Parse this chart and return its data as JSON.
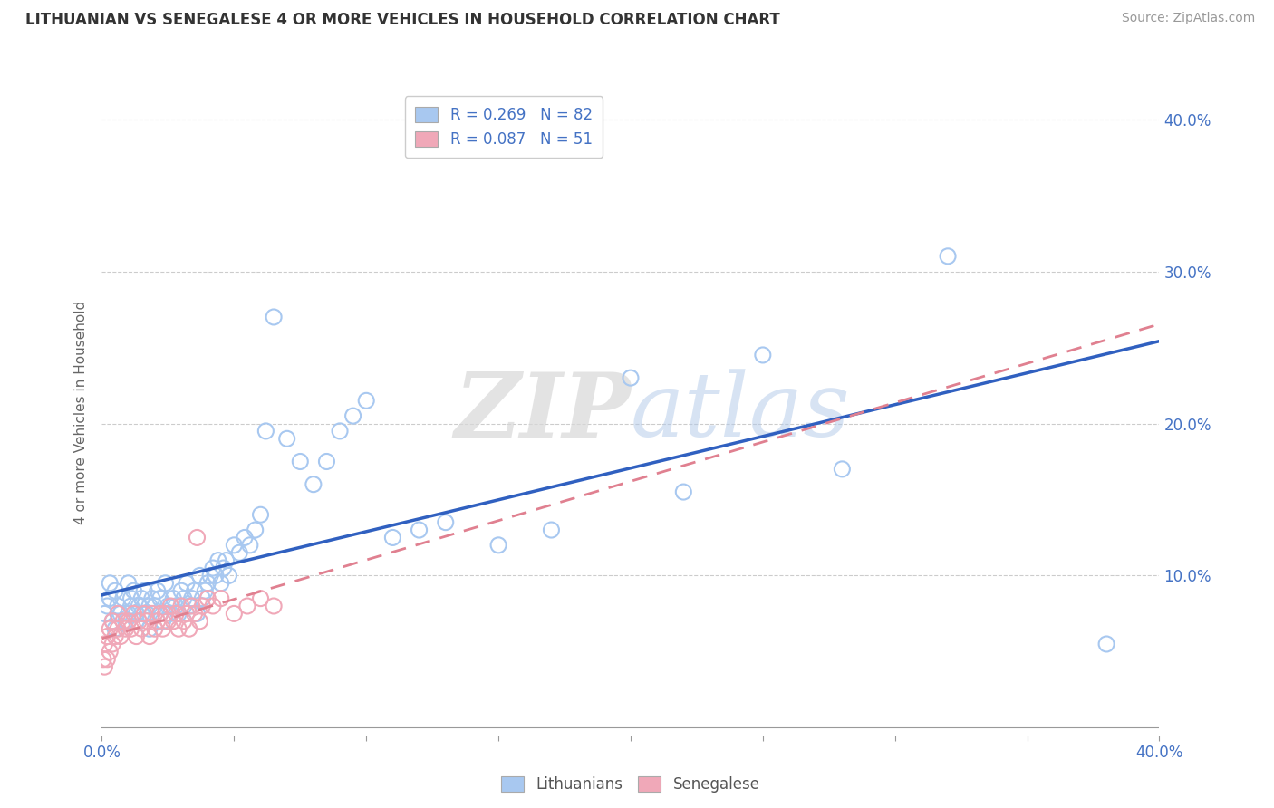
{
  "title": "LITHUANIAN VS SENEGALESE 4 OR MORE VEHICLES IN HOUSEHOLD CORRELATION CHART",
  "source": "Source: ZipAtlas.com",
  "ylabel": "4 or more Vehicles in Household",
  "legend_label_blue": "Lithuanians",
  "legend_label_pink": "Senegalese",
  "color_blue": "#a8c8f0",
  "color_pink": "#f0a8b8",
  "color_blue_line": "#3060c0",
  "color_pink_line": "#e08090",
  "color_text": "#4472c4",
  "watermark_zip": "ZIP",
  "watermark_atlas": "atlas",
  "xlim": [
    0.0,
    0.4
  ],
  "ylim": [
    -0.005,
    0.42
  ],
  "blue_scatter_x": [
    0.001,
    0.002,
    0.003,
    0.003,
    0.004,
    0.005,
    0.005,
    0.006,
    0.007,
    0.008,
    0.009,
    0.01,
    0.01,
    0.011,
    0.011,
    0.012,
    0.013,
    0.013,
    0.014,
    0.015,
    0.015,
    0.016,
    0.017,
    0.018,
    0.018,
    0.019,
    0.02,
    0.021,
    0.022,
    0.022,
    0.023,
    0.024,
    0.025,
    0.026,
    0.027,
    0.028,
    0.029,
    0.03,
    0.031,
    0.032,
    0.033,
    0.034,
    0.035,
    0.036,
    0.037,
    0.038,
    0.039,
    0.04,
    0.041,
    0.042,
    0.043,
    0.044,
    0.045,
    0.046,
    0.047,
    0.048,
    0.05,
    0.052,
    0.054,
    0.056,
    0.058,
    0.06,
    0.062,
    0.065,
    0.07,
    0.075,
    0.08,
    0.085,
    0.09,
    0.095,
    0.1,
    0.11,
    0.12,
    0.13,
    0.15,
    0.17,
    0.2,
    0.22,
    0.25,
    0.28,
    0.32,
    0.38
  ],
  "blue_scatter_y": [
    0.075,
    0.08,
    0.085,
    0.095,
    0.07,
    0.065,
    0.09,
    0.08,
    0.075,
    0.085,
    0.07,
    0.075,
    0.095,
    0.08,
    0.085,
    0.09,
    0.075,
    0.07,
    0.08,
    0.085,
    0.075,
    0.09,
    0.075,
    0.08,
    0.065,
    0.085,
    0.08,
    0.09,
    0.075,
    0.085,
    0.07,
    0.095,
    0.08,
    0.075,
    0.085,
    0.08,
    0.075,
    0.09,
    0.085,
    0.095,
    0.08,
    0.085,
    0.09,
    0.075,
    0.1,
    0.085,
    0.09,
    0.095,
    0.1,
    0.105,
    0.1,
    0.11,
    0.095,
    0.105,
    0.11,
    0.1,
    0.12,
    0.115,
    0.125,
    0.12,
    0.13,
    0.14,
    0.195,
    0.27,
    0.19,
    0.175,
    0.16,
    0.175,
    0.195,
    0.205,
    0.215,
    0.125,
    0.13,
    0.135,
    0.12,
    0.13,
    0.23,
    0.155,
    0.245,
    0.17,
    0.31,
    0.055
  ],
  "pink_scatter_x": [
    0.0005,
    0.001,
    0.001,
    0.002,
    0.002,
    0.003,
    0.003,
    0.004,
    0.004,
    0.005,
    0.006,
    0.006,
    0.007,
    0.008,
    0.009,
    0.01,
    0.011,
    0.012,
    0.013,
    0.014,
    0.015,
    0.016,
    0.017,
    0.018,
    0.019,
    0.02,
    0.021,
    0.022,
    0.023,
    0.024,
    0.025,
    0.026,
    0.027,
    0.028,
    0.029,
    0.03,
    0.031,
    0.032,
    0.033,
    0.034,
    0.035,
    0.036,
    0.037,
    0.038,
    0.04,
    0.042,
    0.045,
    0.05,
    0.055,
    0.06,
    0.065
  ],
  "pink_scatter_y": [
    0.045,
    0.04,
    0.055,
    0.045,
    0.06,
    0.05,
    0.065,
    0.055,
    0.07,
    0.06,
    0.065,
    0.075,
    0.06,
    0.07,
    0.065,
    0.07,
    0.065,
    0.075,
    0.06,
    0.07,
    0.065,
    0.075,
    0.07,
    0.06,
    0.075,
    0.065,
    0.07,
    0.075,
    0.065,
    0.075,
    0.07,
    0.08,
    0.07,
    0.075,
    0.065,
    0.08,
    0.07,
    0.075,
    0.065,
    0.08,
    0.075,
    0.125,
    0.07,
    0.08,
    0.085,
    0.08,
    0.085,
    0.075,
    0.08,
    0.085,
    0.08
  ]
}
